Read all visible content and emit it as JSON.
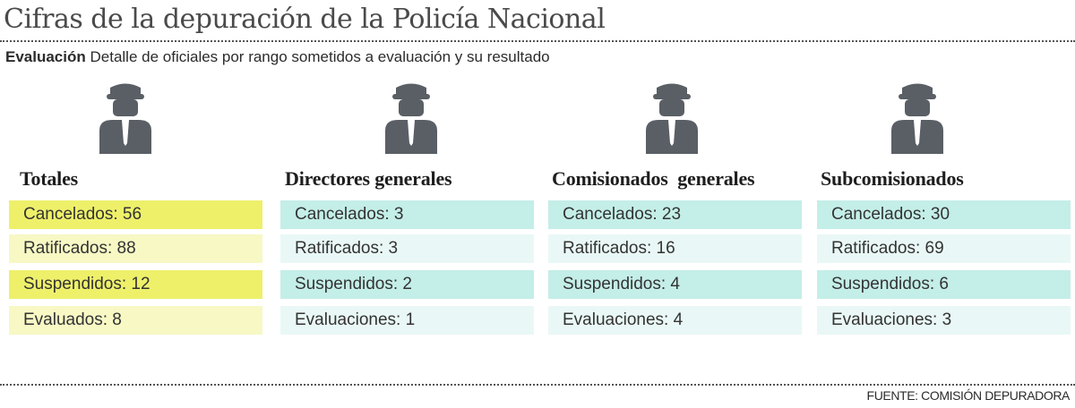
{
  "header": {
    "title": "Cifras de la depuración de la Policía Nacional",
    "subtitle_bold": "Evaluación",
    "subtitle_rest": " Detalle de oficiales por rango sometidos a evaluación y su resultado"
  },
  "icon": "police-officer-icon",
  "colors": {
    "icon": "#5a5f66",
    "yellow_strong": "#eef06a",
    "yellow_light": "#f7f8c4",
    "teal_strong": "#c4eee8",
    "teal_light": "#e9f8f6"
  },
  "groups": [
    {
      "title": "Totales",
      "theme": "yellow",
      "rows": [
        {
          "label": "Cancelados: 56"
        },
        {
          "label": "Ratificados: 88"
        },
        {
          "label": "Suspendidos: 12"
        },
        {
          "label": "Evaluados: 8"
        }
      ]
    },
    {
      "title": "Directores generales",
      "theme": "teal",
      "rows": [
        {
          "label": "Cancelados: 3"
        },
        {
          "label": "Ratificados: 3"
        },
        {
          "label": "Suspendidos: 2"
        },
        {
          "label": "Evaluaciones: 1"
        }
      ]
    },
    {
      "title": "Comisionados  generales",
      "theme": "teal",
      "rows": [
        {
          "label": "Cancelados: 23"
        },
        {
          "label": "Ratificados: 16"
        },
        {
          "label": "Suspendidos: 4"
        },
        {
          "label": "Evaluaciones: 4"
        }
      ]
    },
    {
      "title": "Subcomisionados",
      "theme": "teal",
      "rows": [
        {
          "label": "Cancelados: 30"
        },
        {
          "label": "Ratificados: 69"
        },
        {
          "label": "Suspendidos: 6"
        },
        {
          "label": "Evaluaciones: 3"
        }
      ]
    }
  ],
  "footer": {
    "source": "FUENTE: COMISIÓN DEPURADORA"
  }
}
